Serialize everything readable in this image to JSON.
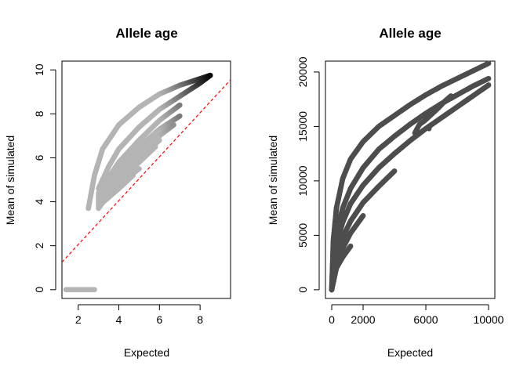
{
  "chart_data": [
    {
      "type": "scatter",
      "title": "Allele age",
      "xlabel": "Expected",
      "ylabel": "Mean of simulated",
      "xlim": [
        1.2,
        9.5
      ],
      "ylim": [
        -0.4,
        10.4
      ],
      "xticks": [
        2,
        4,
        6,
        8
      ],
      "yticks": [
        0,
        2,
        4,
        6,
        8,
        10
      ],
      "point_color_range": [
        "#b4b4b4",
        "#000000"
      ],
      "reference_line": {
        "style": "dashed",
        "color": "#ff0000",
        "intercept": 0.05,
        "slope": 1.0
      },
      "series": [
        {
          "x": [
            1.4,
            1.8,
            2.2,
            2.6,
            2.8
          ],
          "y": [
            0.0,
            0.0,
            0.0,
            0.0,
            0.0
          ]
        },
        {
          "x": [
            2.5,
            2.8,
            3.2,
            4.0,
            5.0,
            6.0,
            7.0,
            8.0,
            8.5
          ],
          "y": [
            3.7,
            5.2,
            6.4,
            7.5,
            8.3,
            8.9,
            9.3,
            9.6,
            9.75
          ]
        },
        {
          "x": [
            3.0,
            3.5,
            4.0,
            5.0,
            6.0,
            7.0,
            8.0,
            8.5
          ],
          "y": [
            4.6,
            5.6,
            6.4,
            7.4,
            8.2,
            8.8,
            9.4,
            9.75
          ]
        },
        {
          "x": [
            3.0,
            4.0,
            5.0,
            6.0,
            7.0
          ],
          "y": [
            4.4,
            5.8,
            6.8,
            7.7,
            8.4
          ]
        },
        {
          "x": [
            3.0,
            4.0,
            5.0,
            6.0,
            7.0
          ],
          "y": [
            4.3,
            5.6,
            6.5,
            7.3,
            7.9
          ]
        },
        {
          "x": [
            3.0,
            4.0,
            5.0,
            6.0,
            6.7
          ],
          "y": [
            4.2,
            5.4,
            6.2,
            7.0,
            7.5
          ]
        },
        {
          "x": [
            3.0,
            4.0,
            5.0,
            6.0
          ],
          "y": [
            4.1,
            5.2,
            6.0,
            6.8
          ]
        },
        {
          "x": [
            3.0,
            4.0,
            5.0,
            5.8
          ],
          "y": [
            4.0,
            5.0,
            5.8,
            6.5
          ]
        },
        {
          "x": [
            3.0,
            4.0,
            5.0
          ],
          "y": [
            3.9,
            4.8,
            5.5
          ]
        },
        {
          "x": [
            3.0,
            4.0,
            4.7
          ],
          "y": [
            3.8,
            4.6,
            5.2
          ]
        },
        {
          "x": [
            3.0,
            4.0,
            4.8
          ],
          "y": [
            3.7,
            5.0,
            6.1
          ]
        }
      ]
    },
    {
      "type": "scatter",
      "title": "Allele age",
      "xlabel": "Expected",
      "ylabel": "Mean of simulated",
      "xlim": [
        -400,
        10400
      ],
      "ylim": [
        -800,
        21000
      ],
      "xticks": [
        0,
        2000,
        6000,
        10000
      ],
      "yticks": [
        0,
        5000,
        10000,
        15000,
        20000
      ],
      "point_color": "#4d4d4d",
      "series": [
        {
          "x": [
            0,
            100,
            300,
            700,
            1200,
            2000,
            3000,
            4000,
            5000,
            6000,
            7000,
            8000,
            9000,
            10000
          ],
          "y": [
            0,
            4500,
            7500,
            10200,
            12000,
            13600,
            15000,
            16000,
            17000,
            17900,
            18700,
            19400,
            20100,
            20800
          ]
        },
        {
          "x": [
            0,
            100,
            300,
            700,
            1200,
            2000,
            3000,
            4000,
            5000,
            6000,
            7000,
            8000,
            9000,
            10000
          ],
          "y": [
            0,
            3000,
            5200,
            7500,
            9300,
            11200,
            12900,
            14100,
            15200,
            16200,
            17100,
            17900,
            18700,
            19400
          ]
        },
        {
          "x": [
            0,
            300,
            700,
            1200,
            2000,
            3000,
            4000,
            5000,
            6000,
            7000,
            8000,
            9000,
            10000
          ],
          "y": [
            0,
            4200,
            6200,
            7900,
            9600,
            11200,
            12500,
            13700,
            14800,
            15800,
            16800,
            17800,
            18800
          ]
        },
        {
          "x": [
            0,
            300,
            700,
            1200,
            2000,
            3000,
            4000
          ],
          "y": [
            0,
            3200,
            4800,
            6300,
            8000,
            9500,
            10900
          ]
        },
        {
          "x": [
            0,
            300,
            700,
            1200,
            2000
          ],
          "y": [
            0,
            2500,
            3800,
            5200,
            6800
          ]
        },
        {
          "x": [
            0,
            300,
            700,
            1200
          ],
          "y": [
            0,
            2000,
            3000,
            4000
          ]
        },
        {
          "x": [
            5300,
            5600,
            5900,
            6200,
            6500,
            6800,
            7200,
            7600
          ],
          "y": [
            14400,
            15200,
            15500,
            15900,
            16300,
            16700,
            17300,
            17800
          ]
        },
        {
          "x": [
            6200
          ],
          "y": [
            14800
          ]
        }
      ]
    }
  ]
}
